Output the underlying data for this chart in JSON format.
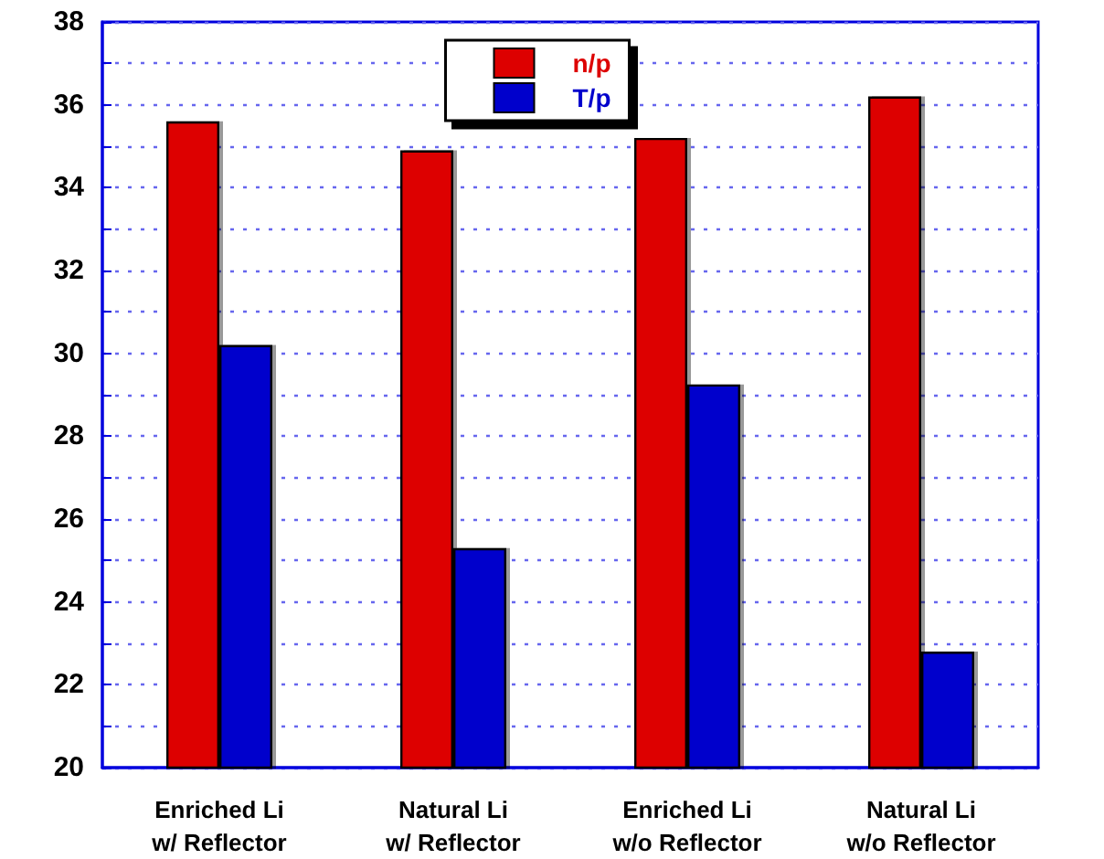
{
  "chart_data": {
    "type": "bar",
    "categories": [
      "Enriched Li\nw/ Reflector",
      "Natural Li\nw/ Reflector",
      "Enriched Li\nw/o Reflector",
      "Natural Li\nw/o Reflector"
    ],
    "series": [
      {
        "name": "n/p",
        "color": "#dd0000",
        "values": [
          35.6,
          34.9,
          35.2,
          36.2
        ]
      },
      {
        "name": "T/p",
        "color": "#0000cc",
        "values": [
          30.2,
          25.3,
          29.25,
          22.8
        ]
      }
    ],
    "ylim": [
      20,
      38
    ],
    "yticks": [
      20,
      {
        "value": 21,
        "label": null
      },
      22,
      {
        "value": 23,
        "label": null
      },
      24,
      {
        "value": 25,
        "label": null
      },
      26,
      {
        "value": 27,
        "label": null
      },
      28,
      {
        "value": 29,
        "label": null
      },
      30,
      {
        "value": 31,
        "label": null
      },
      32,
      {
        "value": 33,
        "label": null
      },
      34,
      {
        "value": 35,
        "label": null
      },
      36,
      {
        "value": 37,
        "label": null
      },
      38
    ],
    "grid": "y",
    "legend": "top"
  }
}
